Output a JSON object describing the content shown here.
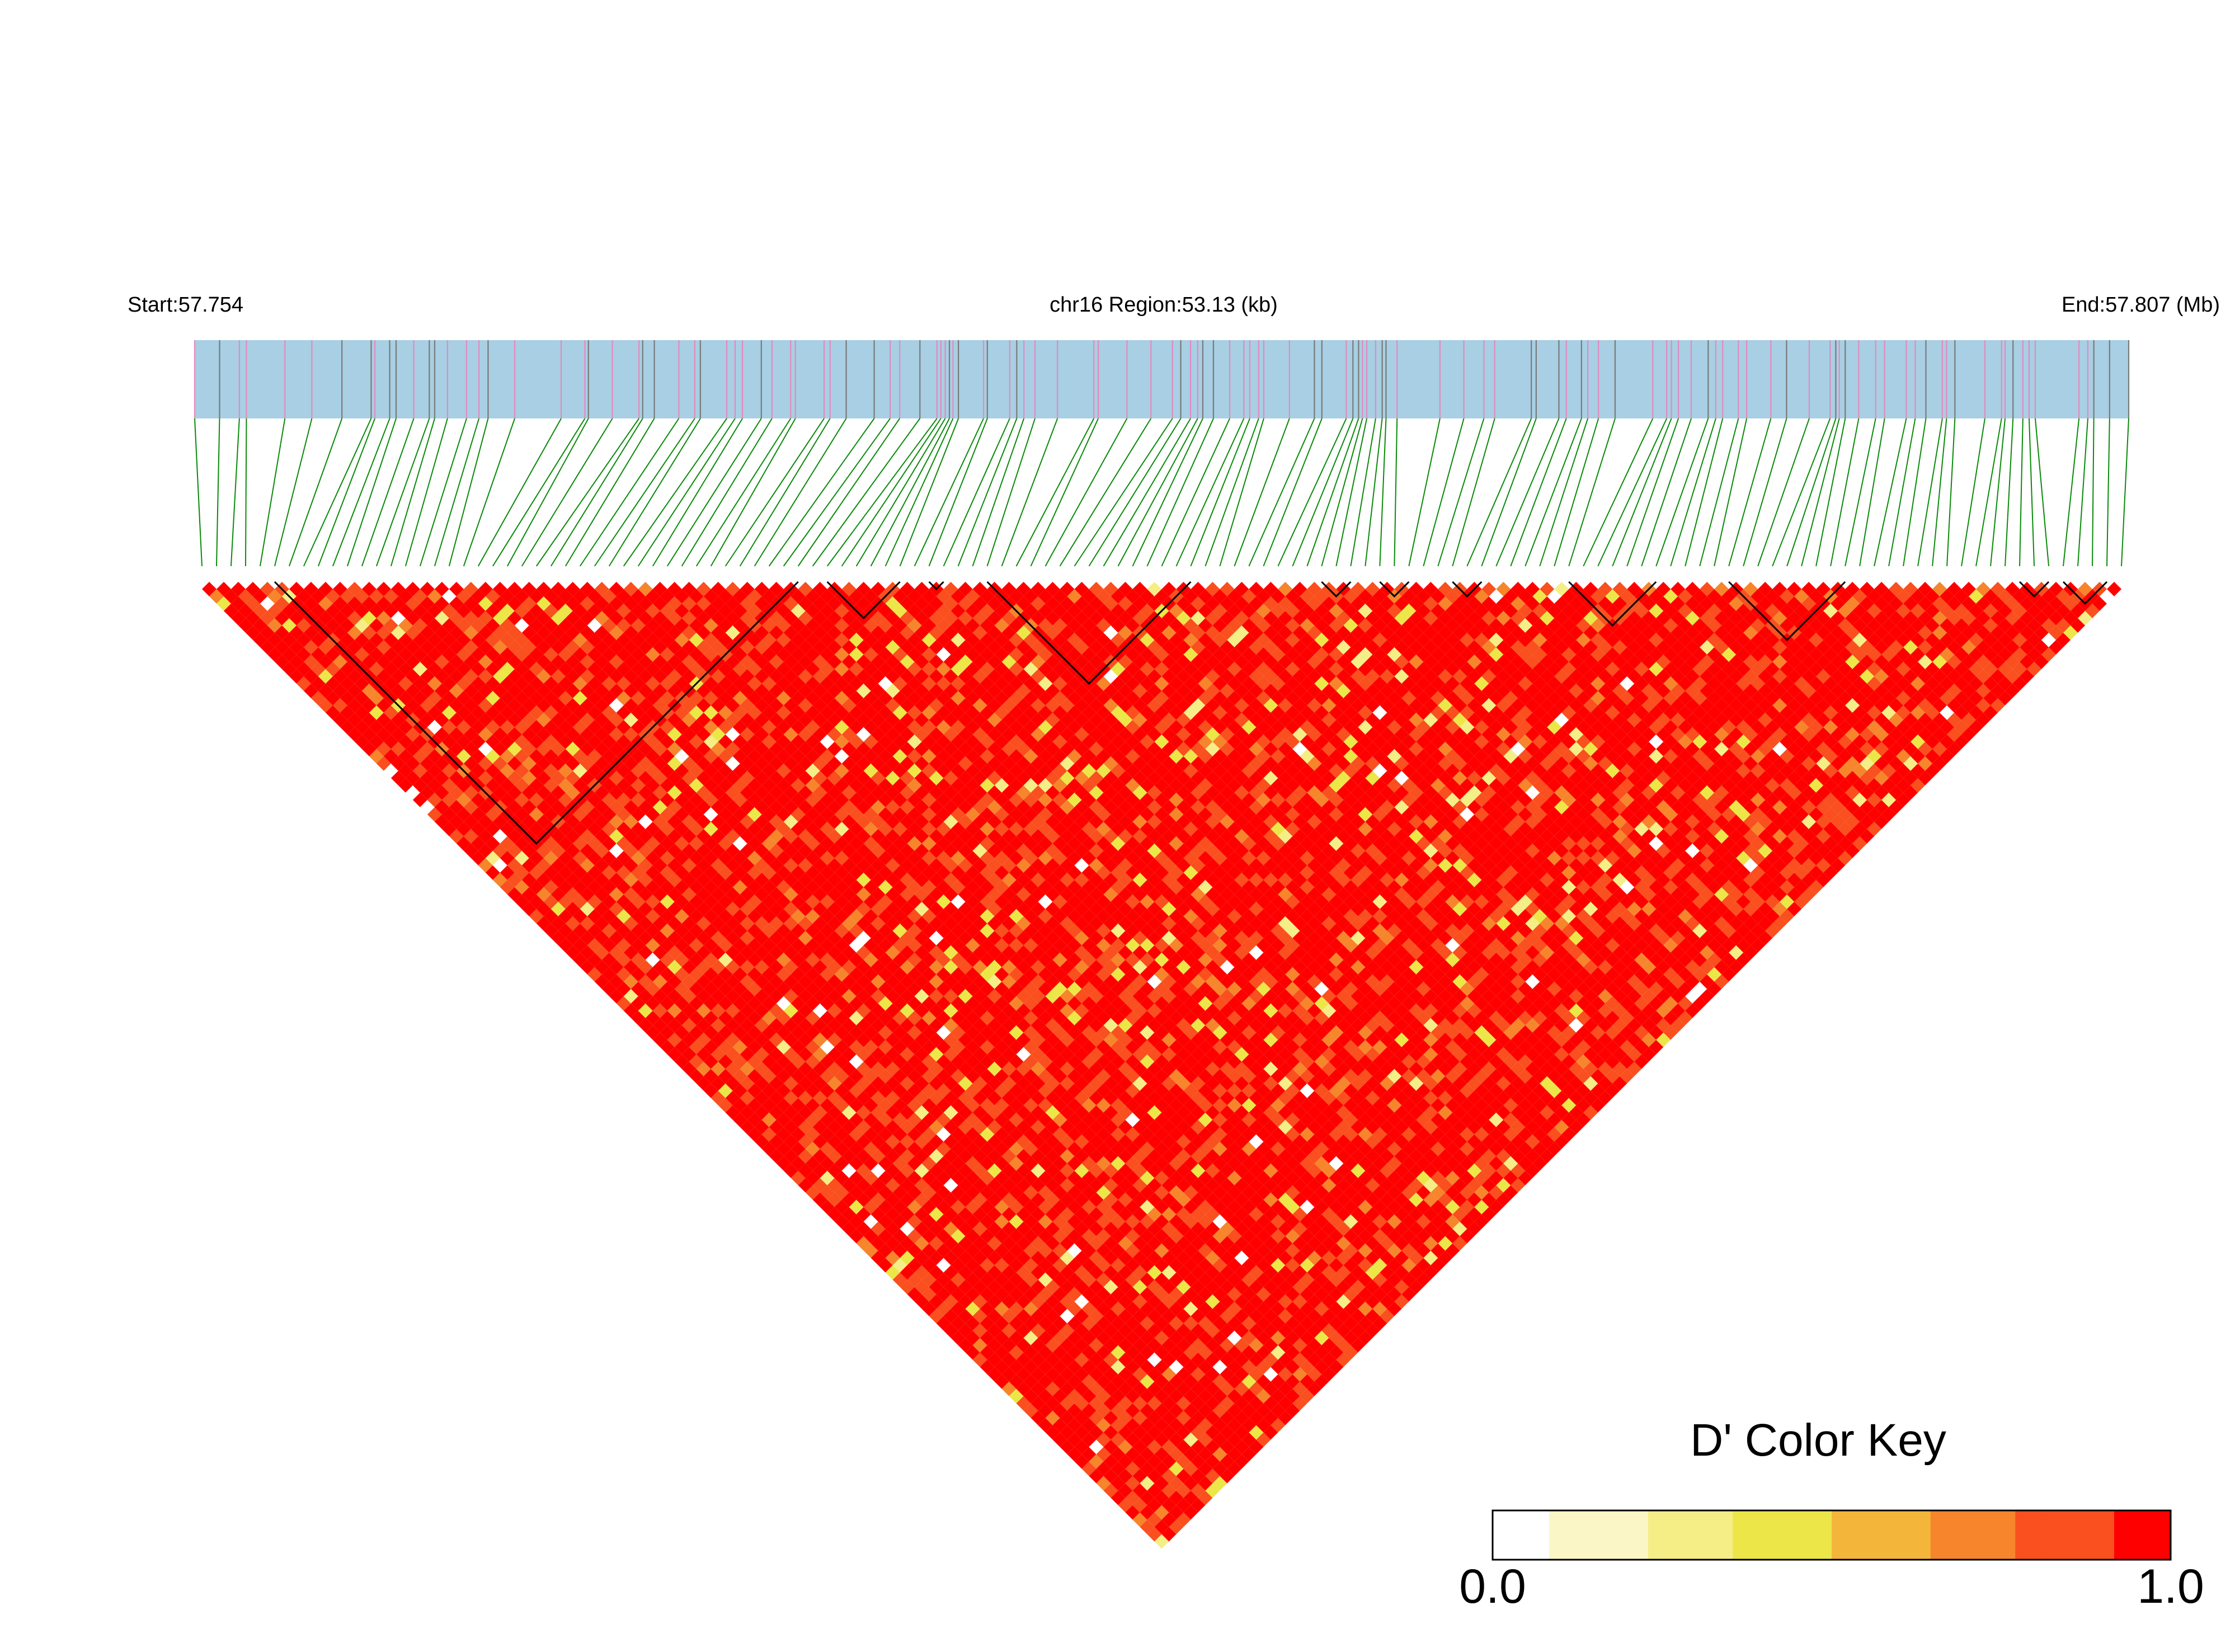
{
  "chart_data": {
    "type": "heatmap",
    "subtype": "linkage-disequilibrium-triangle",
    "chromosome": "chr16",
    "header": {
      "start_label": "Start:57.754",
      "region_label": "chr16 Region:53.13 (kb)",
      "end_label": "End:57.807 (Mb)"
    },
    "region": {
      "start_mb": 57.754,
      "end_mb": 57.807,
      "length_kb": 53.13
    },
    "snp_count": 133,
    "ld_blocks": [
      {
        "first_snp": 6,
        "last_snp": 42
      },
      {
        "first_snp": 44,
        "last_snp": 49
      },
      {
        "first_snp": 51,
        "last_snp": 52
      },
      {
        "first_snp": 55,
        "last_snp": 69
      },
      {
        "first_snp": 78,
        "last_snp": 80
      },
      {
        "first_snp": 82,
        "last_snp": 84
      },
      {
        "first_snp": 87,
        "last_snp": 89
      },
      {
        "first_snp": 95,
        "last_snp": 101
      },
      {
        "first_snp": 106,
        "last_snp": 114
      },
      {
        "first_snp": 126,
        "last_snp": 128
      },
      {
        "first_snp": 129,
        "last_snp": 132
      }
    ],
    "legend": {
      "title": "D' Color Key",
      "min_label": "0.0",
      "max_label": "1.0",
      "colors": [
        "#ffffff",
        "#fbf6c6",
        "#f5ee86",
        "#ede648",
        "#f4b63a",
        "#f7852c",
        "#fa4f1e",
        "#ff0000"
      ]
    },
    "colors": {
      "track": "#a8cfe3",
      "common_marker": "#7a7a7a",
      "rare_marker": "#e28ac0",
      "connector": "#0a8a0a",
      "high_ld": "#ff0000",
      "block_outline": "#000000"
    },
    "value_range": [
      0,
      1
    ],
    "dominant_value": "D' near 1.0 (red) across most pairs"
  }
}
